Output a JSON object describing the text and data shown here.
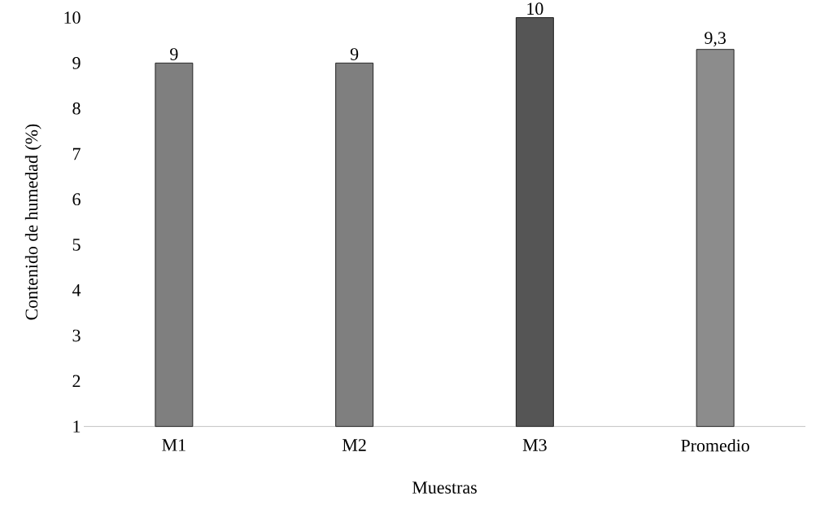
{
  "chart_data": {
    "type": "bar",
    "categories": [
      "M1",
      "M2",
      "M3",
      "Promedio"
    ],
    "values": [
      9,
      9,
      10,
      9.3
    ],
    "value_labels": [
      "9",
      "9",
      "10",
      "9,3"
    ],
    "colors": [
      "#7f7f7f",
      "#7f7f7f",
      "#555555",
      "#8c8c8c"
    ],
    "xlabel": "Muestras",
    "ylabel": "Contenido de humedad (%)",
    "ylim": [
      1,
      10
    ],
    "yticks": [
      1,
      2,
      3,
      4,
      5,
      6,
      7,
      8,
      9,
      10
    ]
  }
}
